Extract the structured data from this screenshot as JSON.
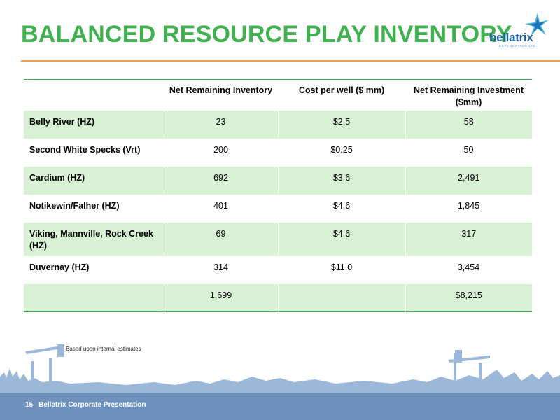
{
  "slide": {
    "title": "BALANCED RESOURCE PLAY INVENTORY",
    "page_number": "15",
    "footer": "Bellatrix Corporate Presentation",
    "footnote": "Based upon internal estimates"
  },
  "logo": {
    "name": "bellatrix",
    "tagline": "EXPLORATION LTD",
    "icon": "star-logo"
  },
  "table": {
    "headers": [
      "",
      "Net Remaining Inventory",
      "Cost per well ($ mm)",
      "Net Remaining Investment ($mm)"
    ],
    "rows": [
      {
        "label": "Belly River (HZ)",
        "inventory": "23",
        "cost": "$2.5",
        "investment": "58"
      },
      {
        "label": "Second White Specks (Vrt)",
        "inventory": "200",
        "cost": "$0.25",
        "investment": "50"
      },
      {
        "label": "Cardium (HZ)",
        "inventory": "692",
        "cost": "$3.6",
        "investment": "2,491"
      },
      {
        "label": "Notikewin/Falher (HZ)",
        "inventory": "401",
        "cost": "$4.6",
        "investment": "1,845"
      },
      {
        "label": "Viking, Mannville, Rock Creek (HZ)",
        "inventory": "69",
        "cost": "$4.6",
        "investment": "317"
      },
      {
        "label": "Duvernay (HZ)",
        "inventory": "314",
        "cost": "$11.0",
        "investment": "3,454"
      },
      {
        "label": "",
        "inventory": "1,699",
        "cost": "",
        "investment": "$8,215"
      }
    ]
  },
  "colors": {
    "title_green": "#3fb24f",
    "row_shade": "#d9f2d6",
    "rule_orange": "#f0a04a",
    "footer_blue": "#6d90bd"
  }
}
